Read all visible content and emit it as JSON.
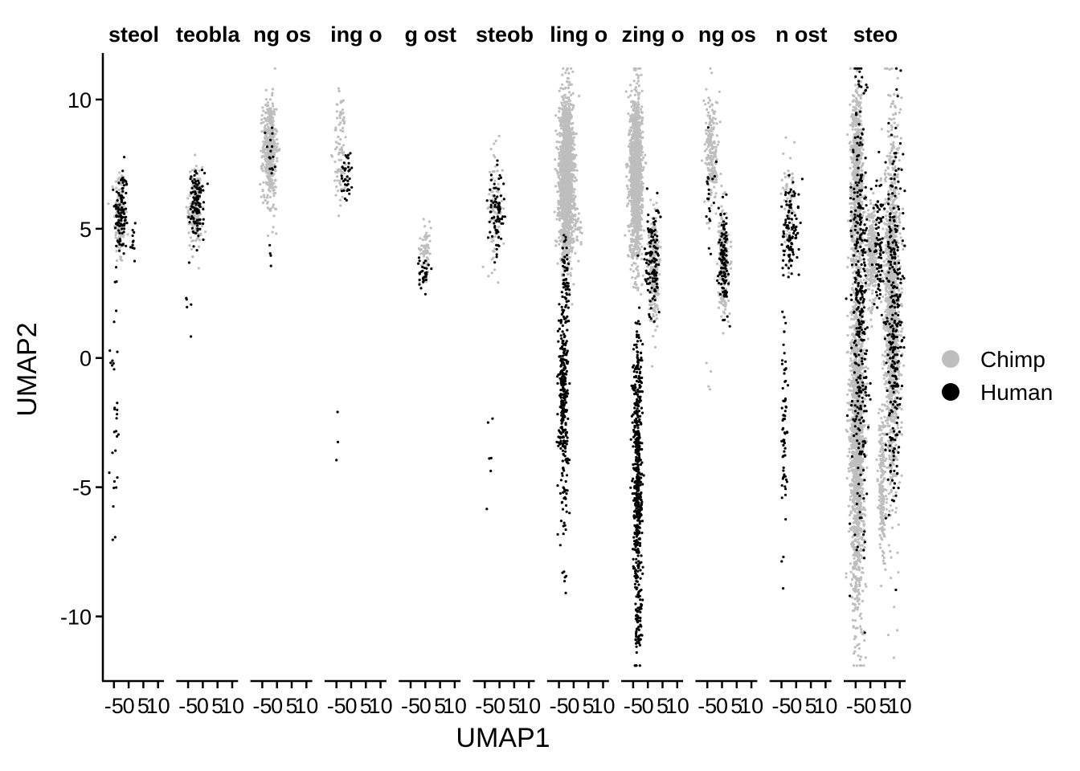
{
  "chart_data": {
    "type": "scatter",
    "xlabel": "UMAP1",
    "ylabel": "UMAP2",
    "ylim": [
      -12.5,
      11.8
    ],
    "y_ticks": [
      10,
      5,
      0,
      -5,
      -10
    ],
    "y_tick_labels": [
      "10",
      "5",
      "0",
      "-5",
      "-10"
    ],
    "x_ticks": [
      -5,
      0,
      5,
      10
    ],
    "x_tick_labels": [
      "-5",
      "0",
      "5",
      "10"
    ],
    "facet_xlim": [
      -8.5,
      12
    ],
    "legend_position": "right",
    "series": [
      {
        "name": "Chimp",
        "color": "#bebebe"
      },
      {
        "name": "Human",
        "color": "#000000"
      }
    ],
    "facets": [
      {
        "title": "steol",
        "clusters": [
          {
            "s": 0,
            "cx": -3,
            "cy": 5.5,
            "sx": 1.2,
            "sy": 1.1,
            "n": 120
          },
          {
            "s": 1,
            "cx": -2.5,
            "cy": 5.6,
            "sx": 1.4,
            "sy": 1.0,
            "n": 110
          },
          {
            "s": 1,
            "cx": -5,
            "cy": -2.5,
            "sx": 0.8,
            "sy": 2.6,
            "n": 30
          },
          {
            "s": 1,
            "cx": 1.5,
            "cy": 4.5,
            "sx": 0.6,
            "sy": 0.8,
            "n": 12
          }
        ]
      },
      {
        "title": "teobla",
        "clusters": [
          {
            "s": 0,
            "cx": -2.5,
            "cy": 5.8,
            "sx": 1.5,
            "sy": 0.9,
            "n": 160
          },
          {
            "s": 1,
            "cx": -2,
            "cy": 5.9,
            "sx": 1.5,
            "sy": 0.7,
            "n": 120
          },
          {
            "s": 1,
            "cx": -5,
            "cy": 1.5,
            "sx": 0.6,
            "sy": 1.2,
            "n": 6
          }
        ]
      },
      {
        "title": "ng os",
        "clusters": [
          {
            "s": 0,
            "cx": -2.5,
            "cy": 8.2,
            "sx": 1.4,
            "sy": 1.0,
            "n": 420
          },
          {
            "s": 0,
            "cx": -2,
            "cy": 6.5,
            "sx": 1.5,
            "sy": 1.0,
            "n": 40
          },
          {
            "s": 1,
            "cx": -2,
            "cy": 7.8,
            "sx": 1.3,
            "sy": 0.9,
            "n": 15
          },
          {
            "s": 1,
            "cx": -2.5,
            "cy": 4.0,
            "sx": 0.5,
            "sy": 0.3,
            "n": 4
          }
        ]
      },
      {
        "title": "ing o",
        "clusters": [
          {
            "s": 0,
            "cx": -3.5,
            "cy": 8.0,
            "sx": 1.5,
            "sy": 1.3,
            "n": 90
          },
          {
            "s": 1,
            "cx": -1.5,
            "cy": 7.2,
            "sx": 1.3,
            "sy": 0.6,
            "n": 35
          },
          {
            "s": 1,
            "cx": -4.5,
            "cy": -3.5,
            "sx": 0.3,
            "sy": 1.0,
            "n": 3
          }
        ]
      },
      {
        "title": "g ost",
        "clusters": [
          {
            "s": 0,
            "cx": 0,
            "cy": 4.2,
            "sx": 1.2,
            "sy": 0.6,
            "n": 70
          },
          {
            "s": 1,
            "cx": -0.5,
            "cy": 3.3,
            "sx": 1.0,
            "sy": 0.4,
            "n": 30
          }
        ]
      },
      {
        "title": "steob",
        "clusters": [
          {
            "s": 0,
            "cx": -1.5,
            "cy": 5.8,
            "sx": 1.6,
            "sy": 1.2,
            "n": 90
          },
          {
            "s": 1,
            "cx": -1,
            "cy": 5.6,
            "sx": 1.8,
            "sy": 0.9,
            "n": 80
          },
          {
            "s": 1,
            "cx": -3,
            "cy": -3.0,
            "sx": 1.2,
            "sy": 1.8,
            "n": 6
          }
        ]
      },
      {
        "title": "ling o",
        "clusters": [
          {
            "s": 0,
            "cx": -2.5,
            "cy": 7.0,
            "sx": 1.5,
            "sy": 1.6,
            "n": 1800
          },
          {
            "s": 0,
            "cx": 1,
            "cy": 5.0,
            "sx": 1.0,
            "sy": 0.5,
            "n": 40
          },
          {
            "s": 1,
            "cx": -3.5,
            "cy": -1.5,
            "sx": 1.0,
            "sy": 2.4,
            "n": 300
          },
          {
            "s": 1,
            "cx": -2.5,
            "cy": 3.0,
            "sx": 0.8,
            "sy": 1.0,
            "n": 50
          },
          {
            "s": 1,
            "cx": -3,
            "cy": -8.5,
            "sx": 0.3,
            "sy": 0.3,
            "n": 3
          }
        ]
      },
      {
        "title": "zing o",
        "clusters": [
          {
            "s": 0,
            "cx": -4,
            "cy": 7.0,
            "sx": 1.3,
            "sy": 1.7,
            "n": 1400
          },
          {
            "s": 0,
            "cx": 2,
            "cy": 3.5,
            "sx": 1.0,
            "sy": 1.2,
            "n": 250
          },
          {
            "s": 1,
            "cx": -3.5,
            "cy": -4.5,
            "sx": 1.0,
            "sy": 3.2,
            "n": 520
          },
          {
            "s": 1,
            "cx": 1.5,
            "cy": 3.8,
            "sx": 1.5,
            "sy": 1.2,
            "n": 120
          },
          {
            "s": 1,
            "cx": -3,
            "cy": -10.5,
            "sx": 0.8,
            "sy": 0.6,
            "n": 40
          }
        ]
      },
      {
        "title": "ng os",
        "clusters": [
          {
            "s": 0,
            "cx": -3.5,
            "cy": 8.0,
            "sx": 1.4,
            "sy": 1.2,
            "n": 200
          },
          {
            "s": 0,
            "cx": 0.5,
            "cy": 3.8,
            "sx": 1.0,
            "sy": 1.1,
            "n": 260
          },
          {
            "s": 1,
            "cx": 0.5,
            "cy": 3.8,
            "sx": 1.0,
            "sy": 1.0,
            "n": 120
          },
          {
            "s": 1,
            "cx": -3.5,
            "cy": 5.5,
            "sx": 1.2,
            "sy": 1.2,
            "n": 20
          },
          {
            "s": 0,
            "cx": -4,
            "cy": -1.0,
            "sx": 0.7,
            "sy": 0.8,
            "n": 4
          }
        ]
      },
      {
        "title": "n ost",
        "clusters": [
          {
            "s": 0,
            "cx": -2.5,
            "cy": 5.6,
            "sx": 1.5,
            "sy": 1.1,
            "n": 70
          },
          {
            "s": 1,
            "cx": -2,
            "cy": 5.0,
            "sx": 1.8,
            "sy": 1.1,
            "n": 110
          },
          {
            "s": 1,
            "cx": -4,
            "cy": -2.8,
            "sx": 0.6,
            "sy": 2.2,
            "n": 70
          }
        ]
      },
      {
        "title": "steo",
        "clusters": [
          {
            "s": 0,
            "cx": -4.5,
            "cy": -3.0,
            "sx": 1.5,
            "sy": 3.8,
            "n": 1500
          },
          {
            "s": 0,
            "cx": -4.5,
            "cy": 7.0,
            "sx": 1.3,
            "sy": 1.8,
            "n": 700
          },
          {
            "s": 0,
            "cx": 0.5,
            "cy": 4.0,
            "sx": 1.0,
            "sy": 1.0,
            "n": 300
          },
          {
            "s": 0,
            "cx": 7.5,
            "cy": 2.0,
            "sx": 1.6,
            "sy": 3.8,
            "n": 1300
          },
          {
            "s": 0,
            "cx": 4,
            "cy": -5.0,
            "sx": 0.8,
            "sy": 1.6,
            "n": 200
          },
          {
            "s": 1,
            "cx": -3.5,
            "cy": 2.0,
            "sx": 1.7,
            "sy": 4.5,
            "n": 350
          },
          {
            "s": 1,
            "cx": 8,
            "cy": 1.5,
            "sx": 1.8,
            "sy": 4.0,
            "n": 300
          },
          {
            "s": 1,
            "cx": 3,
            "cy": 4.5,
            "sx": 1.0,
            "sy": 1.4,
            "n": 80
          }
        ]
      }
    ]
  }
}
